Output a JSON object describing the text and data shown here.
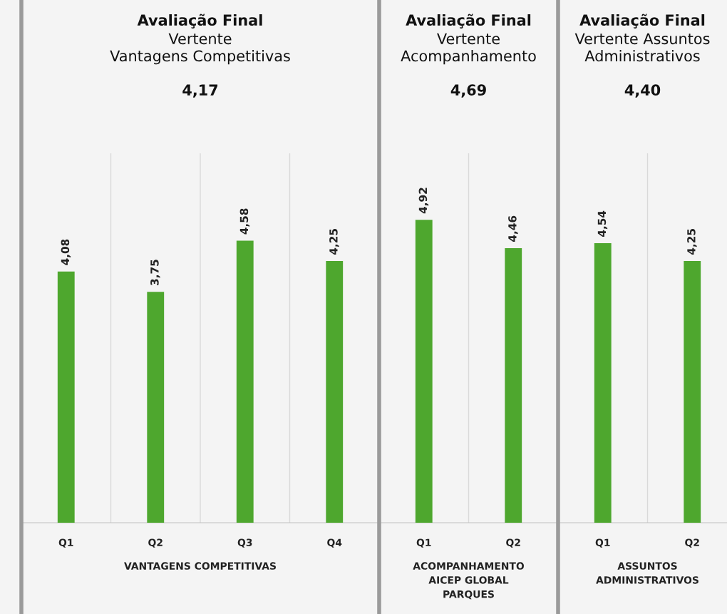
{
  "chart_data": [
    {
      "type": "bar",
      "title": "Avaliação Final",
      "subtitle": "Vertente\nVantagens Competitivas",
      "annotations": [
        "4,17"
      ],
      "xlabel": "VANTAGENS COMPETITIVAS",
      "categories": [
        "Q1",
        "Q2",
        "Q3",
        "Q4"
      ],
      "values": [
        4.08,
        3.75,
        4.58,
        4.25
      ],
      "value_labels": [
        "4,08",
        "3,75",
        "4,58",
        "4,25"
      ],
      "color": "#4ea72e",
      "ylim": [
        0,
        6
      ],
      "grid": "x",
      "tick_labels": "x"
    },
    {
      "type": "bar",
      "title": "Avaliação Final",
      "subtitle": "Vertente\nAcompanhamento",
      "annotations": [
        "4,69"
      ],
      "xlabel": "ACOMPANHAMENTO\nAICEP GLOBAL\nPARQUES",
      "categories": [
        "Q1",
        "Q2"
      ],
      "values": [
        4.92,
        4.46
      ],
      "value_labels": [
        "4,92",
        "4,46"
      ],
      "color": "#4ea72e",
      "ylim": [
        0,
        6
      ],
      "grid": "x",
      "tick_labels": "x"
    },
    {
      "type": "bar",
      "title": "Avaliação Final",
      "subtitle": "Vertente Assuntos\nAdministrativos",
      "annotations": [
        "4,40"
      ],
      "xlabel": "ASSUNTOS\nADMINISTRATIVOS",
      "categories": [
        "Q1",
        "Q2"
      ],
      "values": [
        4.54,
        4.25
      ],
      "value_labels": [
        "4,54",
        "4,25"
      ],
      "color": "#4ea72e",
      "ylim": [
        0,
        6
      ],
      "grid": "x",
      "tick_labels": "x"
    }
  ]
}
